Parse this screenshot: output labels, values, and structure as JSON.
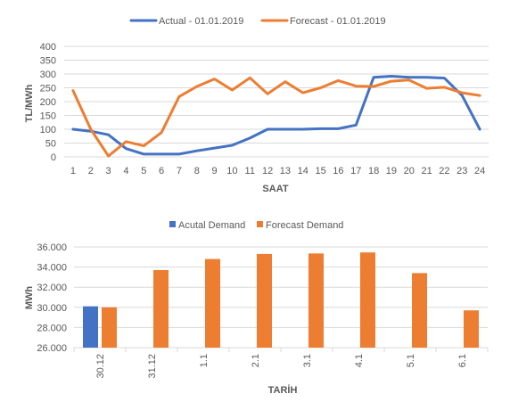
{
  "chart_data": [
    {
      "type": "line",
      "title": "",
      "xlabel": "SAAT",
      "ylabel": "TL/MWh",
      "x": [
        1,
        2,
        3,
        4,
        5,
        6,
        7,
        8,
        9,
        10,
        11,
        12,
        13,
        14,
        15,
        16,
        17,
        18,
        19,
        20,
        21,
        22,
        23,
        24
      ],
      "ylim": [
        0,
        400
      ],
      "yticks": [
        0,
        50,
        100,
        150,
        200,
        250,
        300,
        350,
        400
      ],
      "grid": true,
      "legend_position": "top",
      "series": [
        {
          "name": "Actual - 01.01.2019",
          "color": "#4472c4",
          "values": [
            100,
            93,
            80,
            30,
            10,
            10,
            10,
            22,
            32,
            42,
            68,
            100,
            100,
            100,
            102,
            102,
            115,
            288,
            292,
            288,
            288,
            285,
            222,
            100
          ]
        },
        {
          "name": "Forecast - 01.01.2019",
          "color": "#ed7d31",
          "values": [
            240,
            100,
            3,
            55,
            40,
            88,
            218,
            255,
            282,
            242,
            286,
            228,
            272,
            232,
            250,
            276,
            256,
            255,
            274,
            278,
            248,
            252,
            232,
            222
          ]
        }
      ]
    },
    {
      "type": "bar",
      "title": "",
      "xlabel": "TARİH",
      "ylabel": "MWh",
      "categories": [
        "30.12",
        "31.12",
        "1.1",
        "2.1",
        "3.1",
        "4.1",
        "5.1",
        "6.1"
      ],
      "ylim": [
        26000,
        36000
      ],
      "yticks": [
        "26.000",
        "28.000",
        "30.000",
        "32.000",
        "34.000",
        "36.000"
      ],
      "grid": true,
      "legend_position": "top",
      "series": [
        {
          "name": "Acutal Demand",
          "color": "#4472c4",
          "values": [
            30100,
            null,
            null,
            null,
            null,
            null,
            null,
            null
          ]
        },
        {
          "name": "Forecast Demand",
          "color": "#ed7d31",
          "values": [
            30000,
            33700,
            34800,
            35300,
            35350,
            35450,
            33400,
            29700
          ]
        }
      ]
    }
  ]
}
